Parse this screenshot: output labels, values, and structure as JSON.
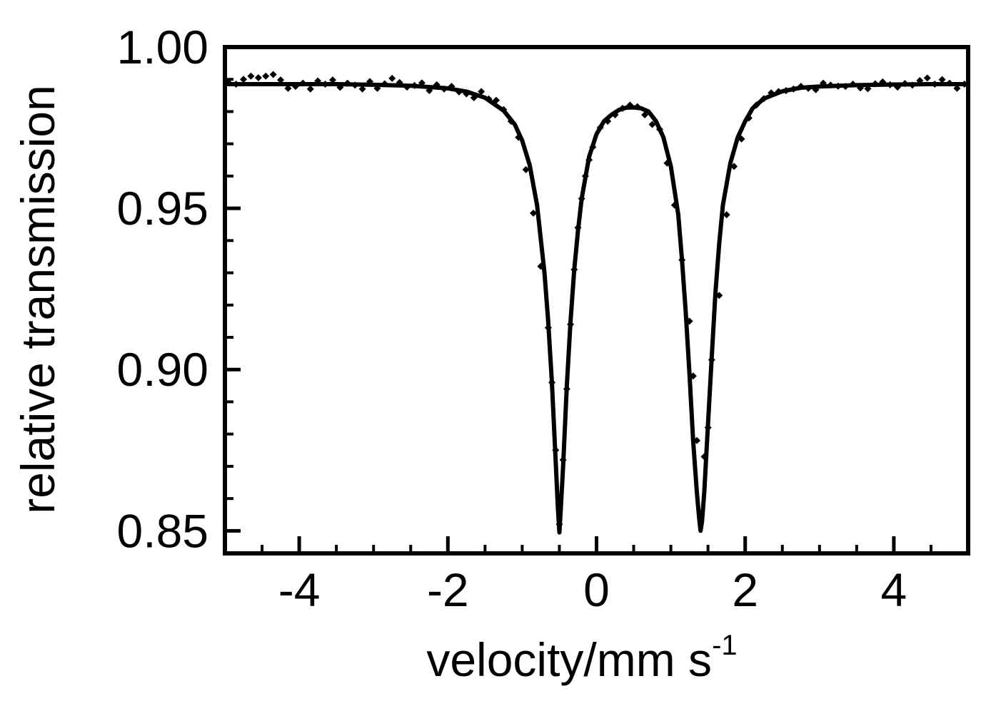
{
  "chart_data": {
    "type": "scatter",
    "xlabel": "velocity/mm s",
    "xlabel_superscript": "-1",
    "ylabel": "relative transmission",
    "xlim": [
      -5,
      5
    ],
    "ylim": [
      0.843,
      1.0
    ],
    "x_ticks": [
      -4,
      -2,
      0,
      2,
      4
    ],
    "x_tick_labels": [
      "-4",
      "-2",
      "0",
      "2",
      "4"
    ],
    "x_minor_step": 0.5,
    "y_ticks": [
      0.85,
      0.9,
      0.95,
      1.0
    ],
    "y_tick_labels": [
      "0.85",
      "0.90",
      "0.95",
      "1.00"
    ],
    "y_minor_step": 0.01,
    "grid": false,
    "legend": "none",
    "series": [
      {
        "kind": "fit",
        "style": "line",
        "color": "#000000",
        "x": [
          -5.0,
          -4.5,
          -4.0,
          -3.5,
          -3.0,
          -2.5,
          -2.0,
          -1.75,
          -1.5,
          -1.25,
          -1.1,
          -1.0,
          -0.9,
          -0.8,
          -0.7,
          -0.65,
          -0.6,
          -0.55,
          -0.52,
          -0.5,
          -0.48,
          -0.45,
          -0.4,
          -0.35,
          -0.3,
          -0.25,
          -0.2,
          -0.1,
          0.0,
          0.1,
          0.2,
          0.3,
          0.4,
          0.5,
          0.6,
          0.7,
          0.8,
          0.9,
          1.0,
          1.1,
          1.15,
          1.2,
          1.25,
          1.3,
          1.35,
          1.38,
          1.4,
          1.42,
          1.45,
          1.5,
          1.55,
          1.6,
          1.65,
          1.7,
          1.8,
          1.9,
          2.0,
          2.1,
          2.25,
          2.5,
          2.75,
          3.0,
          3.5,
          4.0,
          4.5,
          5.0
        ],
        "y": [
          0.9885,
          0.9885,
          0.9885,
          0.9885,
          0.9883,
          0.988,
          0.9872,
          0.9862,
          0.9843,
          0.9803,
          0.976,
          0.971,
          0.9635,
          0.951,
          0.93,
          0.915,
          0.896,
          0.872,
          0.857,
          0.8495,
          0.857,
          0.87,
          0.895,
          0.915,
          0.931,
          0.943,
          0.953,
          0.966,
          0.973,
          0.977,
          0.979,
          0.9805,
          0.9812,
          0.9813,
          0.981,
          0.98,
          0.977,
          0.972,
          0.963,
          0.948,
          0.934,
          0.918,
          0.899,
          0.878,
          0.862,
          0.854,
          0.85,
          0.853,
          0.862,
          0.883,
          0.904,
          0.924,
          0.939,
          0.951,
          0.964,
          0.972,
          0.977,
          0.981,
          0.984,
          0.9863,
          0.9874,
          0.9878,
          0.9882,
          0.9884,
          0.9885,
          0.9885
        ]
      },
      {
        "kind": "measured",
        "style": "points",
        "marker": "diamond",
        "color": "#000000",
        "x": [
          -4.95,
          -4.85,
          -4.75,
          -4.65,
          -4.55,
          -4.45,
          -4.35,
          -4.25,
          -4.15,
          -4.05,
          -3.95,
          -3.85,
          -3.75,
          -3.65,
          -3.55,
          -3.45,
          -3.35,
          -3.25,
          -3.15,
          -3.05,
          -2.95,
          -2.85,
          -2.75,
          -2.65,
          -2.55,
          -2.45,
          -2.35,
          -2.25,
          -2.15,
          -2.05,
          -1.95,
          -1.85,
          -1.75,
          -1.65,
          -1.55,
          -1.45,
          -1.35,
          -1.25,
          -1.15,
          -1.05,
          -0.95,
          -0.85,
          -0.75,
          -0.65,
          -0.6,
          -0.55,
          -0.5,
          -0.45,
          -0.4,
          -0.35,
          -0.3,
          -0.25,
          -0.2,
          -0.15,
          -0.1,
          -0.05,
          0.05,
          0.15,
          0.25,
          0.35,
          0.45,
          0.55,
          0.65,
          0.75,
          0.85,
          0.95,
          1.05,
          1.15,
          1.25,
          1.3,
          1.35,
          1.4,
          1.45,
          1.5,
          1.55,
          1.65,
          1.75,
          1.85,
          1.95,
          2.05,
          2.15,
          2.25,
          2.35,
          2.45,
          2.55,
          2.65,
          2.75,
          2.85,
          2.95,
          3.05,
          3.15,
          3.25,
          3.35,
          3.45,
          3.55,
          3.65,
          3.75,
          3.85,
          3.95,
          4.05,
          4.15,
          4.25,
          4.35,
          4.45,
          4.55,
          4.65,
          4.75,
          4.85,
          4.95
        ],
        "y": [
          0.989,
          0.9885,
          0.99,
          0.991,
          0.9905,
          0.991,
          0.9915,
          0.9898,
          0.9872,
          0.9878,
          0.9888,
          0.987,
          0.9895,
          0.9885,
          0.9898,
          0.9875,
          0.9888,
          0.9882,
          0.987,
          0.9893,
          0.9872,
          0.9886,
          0.9903,
          0.989,
          0.9876,
          0.9881,
          0.9889,
          0.9865,
          0.9883,
          0.987,
          0.9878,
          0.9861,
          0.9855,
          0.9843,
          0.9862,
          0.9839,
          0.9835,
          0.9806,
          0.977,
          0.972,
          0.962,
          0.9485,
          0.932,
          0.913,
          0.896,
          0.875,
          0.852,
          0.872,
          0.894,
          0.914,
          0.931,
          0.944,
          0.953,
          0.96,
          0.965,
          0.969,
          0.975,
          0.977,
          0.979,
          0.981,
          0.982,
          0.9815,
          0.979,
          0.976,
          0.9745,
          0.964,
          0.951,
          0.934,
          0.915,
          0.898,
          0.878,
          0.855,
          0.873,
          0.882,
          0.903,
          0.923,
          0.948,
          0.963,
          0.9715,
          0.978,
          0.982,
          0.984,
          0.9858,
          0.9862,
          0.9865,
          0.987,
          0.9878,
          0.9872,
          0.9868,
          0.9888,
          0.9882,
          0.9879,
          0.9878,
          0.9885,
          0.9873,
          0.9871,
          0.9886,
          0.9892,
          0.9883,
          0.9876,
          0.9887,
          0.9882,
          0.9896,
          0.9904,
          0.9885,
          0.9899,
          0.9888,
          0.9872,
          0.9885
        ]
      }
    ]
  }
}
